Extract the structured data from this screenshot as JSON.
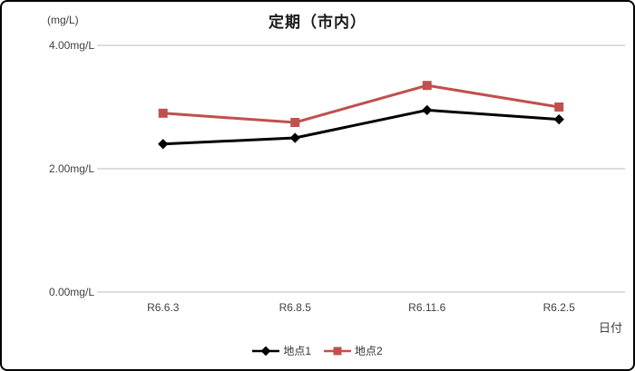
{
  "chart_data": {
    "type": "line",
    "title": "定期（市内）",
    "xlabel": "日付",
    "ylabel": "(mg/L)",
    "categories": [
      "R6.6.3",
      "R6.8.5",
      "R6.11.6",
      "R6.2.5"
    ],
    "series": [
      {
        "name": "地点1",
        "values": [
          2.4,
          2.5,
          2.95,
          2.8
        ],
        "color": "#000000",
        "marker": "diamond"
      },
      {
        "name": "地点2",
        "values": [
          2.9,
          2.75,
          3.35,
          3.0
        ],
        "color": "#C0504D",
        "marker": "square"
      }
    ],
    "ylim": [
      0,
      4
    ],
    "y_ticks": [
      {
        "value": 0,
        "label": "0.00mg/L"
      },
      {
        "value": 2,
        "label": "2.00mg/L"
      },
      {
        "value": 4,
        "label": "4.00mg/L"
      }
    ],
    "grid": true,
    "grid_color": "#DDDDDD",
    "legend_position": "bottom"
  },
  "colors": {
    "series1": "#000000",
    "series2": "#C0504D",
    "gridline": "#DDDDDD",
    "text": "#404040",
    "border": "#000000",
    "background": "#FFFFFF"
  }
}
